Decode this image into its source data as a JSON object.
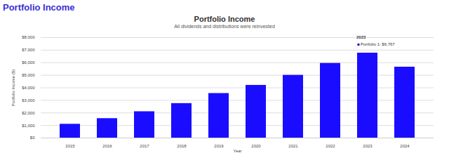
{
  "heading": "Portfolio Income",
  "chart_data": {
    "type": "bar",
    "title": "Portfolio Income",
    "subtitle": "All dividends and distributions were reinvested",
    "xlabel": "Year",
    "ylabel": "Portfolio Income ($)",
    "categories": [
      "2015",
      "2016",
      "2017",
      "2018",
      "2019",
      "2020",
      "2021",
      "2022",
      "2023",
      "2024"
    ],
    "series": [
      {
        "name": "Portfolio 1",
        "color": "#1a0dff",
        "values": [
          1100,
          1550,
          2100,
          2750,
          3550,
          4200,
          5000,
          5950,
          6767,
          5650
        ]
      }
    ],
    "ylim": [
      0,
      8000
    ],
    "yticks": [
      {
        "value": 0,
        "label": "$0"
      },
      {
        "value": 1000,
        "label": "$1,000"
      },
      {
        "value": 2000,
        "label": "$2,000"
      },
      {
        "value": 3000,
        "label": "$3,000"
      },
      {
        "value": 4000,
        "label": "$4,000"
      },
      {
        "value": 5000,
        "label": "$5,000"
      },
      {
        "value": 6000,
        "label": "$6,000"
      },
      {
        "value": 7000,
        "label": "$7,000"
      },
      {
        "value": 8000,
        "label": "$8,000"
      }
    ],
    "grid": true,
    "annotations": [
      {
        "category": "2023",
        "title": "2023",
        "text": "Portfolio 1: $6,767"
      }
    ]
  }
}
